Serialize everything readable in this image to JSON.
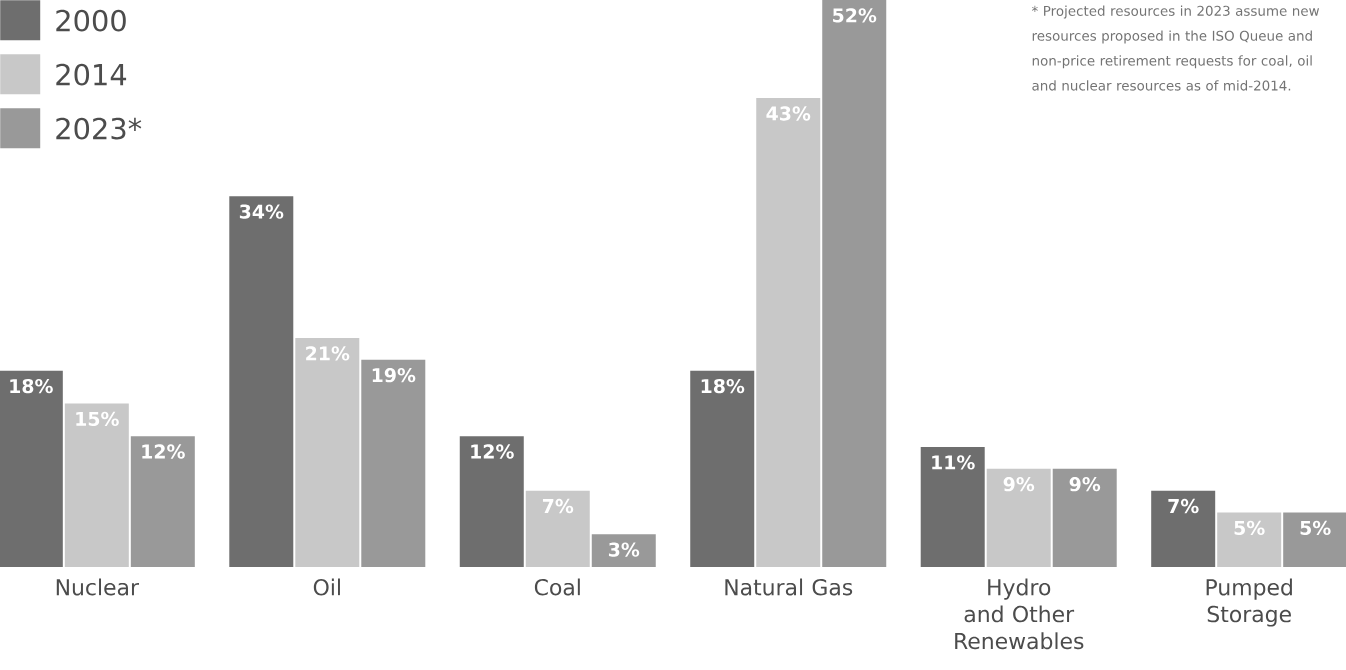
{
  "chart_data": {
    "type": "bar",
    "categories": [
      "Nuclear",
      "Oil",
      "Coal",
      "Natural Gas",
      "Hydro and Other Renewables",
      "Pumped Storage"
    ],
    "series": [
      {
        "name": "2000",
        "color": "#6e6e6e",
        "values": [
          18,
          34,
          12,
          18,
          11,
          7
        ],
        "value_labels": [
          "18%",
          "34%",
          "12%",
          "18%",
          "11%",
          "7%"
        ]
      },
      {
        "name": "2014",
        "color": "#c8c8c8",
        "values": [
          15,
          21,
          7,
          43,
          9,
          5
        ],
        "value_labels": [
          "15%",
          "21%",
          "7%",
          "43%",
          "9%",
          "5%"
        ]
      },
      {
        "name": "2023*",
        "color": "#999999",
        "values": [
          12,
          19,
          3,
          52,
          9,
          5
        ],
        "value_labels": [
          "12%",
          "19%",
          "3%",
          "52%",
          "9%",
          "5%"
        ]
      }
    ],
    "legend": "top left",
    "annotations": [
      "* Projected resources in 2023 assume new resources proposed in the ISO Queue and non-price retirement requests for coal, oil and nuclear resources as of mid-2014."
    ]
  }
}
